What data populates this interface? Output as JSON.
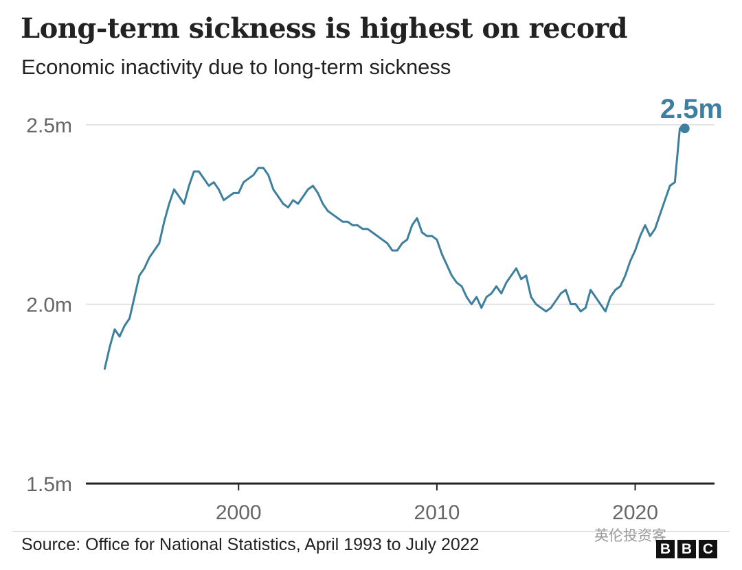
{
  "title": "Long-term sickness is highest on record",
  "subtitle": "Economic inactivity due to long-term sickness",
  "source": "Source: Office for National Statistics, April 1993 to July 2022",
  "watermark": "英伦投资客",
  "logo": {
    "letters": [
      "B",
      "B",
      "C"
    ]
  },
  "colors": {
    "line": "#3d7f9e",
    "grid": "#d9d9d9",
    "axis": "#222222",
    "tick_text": "#666666"
  },
  "chart_data": {
    "type": "line",
    "title": "Long-term sickness is highest on record",
    "subtitle": "Economic inactivity due to long-term sickness",
    "xlabel": "",
    "ylabel": "",
    "xlim": [
      1992.3,
      2024.0
    ],
    "ylim": [
      1.5,
      2.5
    ],
    "y_ticks": [
      {
        "value": 2.5,
        "label": "2.5m"
      },
      {
        "value": 2.0,
        "label": "2.0m"
      },
      {
        "value": 1.5,
        "label": "1.5m"
      }
    ],
    "x_ticks": [
      {
        "value": 2000,
        "label": "2000"
      },
      {
        "value": 2010,
        "label": "2010"
      },
      {
        "value": 2020,
        "label": "2020"
      }
    ],
    "grid": true,
    "unit": "millions",
    "annotation": {
      "text": "2.5m",
      "x": 2022.5,
      "y": 2.49
    },
    "series": [
      {
        "x": [
          1993.25,
          1993.5,
          1993.75,
          1994.0,
          1994.25,
          1994.5,
          1994.75,
          1995.0,
          1995.25,
          1995.5,
          1995.75,
          1996.0,
          1996.25,
          1996.5,
          1996.75,
          1997.0,
          1997.25,
          1997.5,
          1997.75,
          1998.0,
          1998.25,
          1998.5,
          1998.75,
          1999.0,
          1999.25,
          1999.5,
          1999.75,
          2000.0,
          2000.25,
          2000.5,
          2000.75,
          2001.0,
          2001.25,
          2001.5,
          2001.75,
          2002.0,
          2002.25,
          2002.5,
          2002.75,
          2003.0,
          2003.25,
          2003.5,
          2003.75,
          2004.0,
          2004.25,
          2004.5,
          2004.75,
          2005.0,
          2005.25,
          2005.5,
          2005.75,
          2006.0,
          2006.25,
          2006.5,
          2006.75,
          2007.0,
          2007.25,
          2007.5,
          2007.75,
          2008.0,
          2008.25,
          2008.5,
          2008.75,
          2009.0,
          2009.25,
          2009.5,
          2009.75,
          2010.0,
          2010.25,
          2010.5,
          2010.75,
          2011.0,
          2011.25,
          2011.5,
          2011.75,
          2012.0,
          2012.25,
          2012.5,
          2012.75,
          2013.0,
          2013.25,
          2013.5,
          2013.75,
          2014.0,
          2014.25,
          2014.5,
          2014.75,
          2015.0,
          2015.25,
          2015.5,
          2015.75,
          2016.0,
          2016.25,
          2016.5,
          2016.75,
          2017.0,
          2017.25,
          2017.5,
          2017.75,
          2018.0,
          2018.25,
          2018.5,
          2018.75,
          2019.0,
          2019.25,
          2019.5,
          2019.75,
          2020.0,
          2020.25,
          2020.5,
          2020.75,
          2021.0,
          2021.25,
          2021.5,
          2021.75,
          2022.0,
          2022.25,
          2022.5
        ],
        "values": [
          1.82,
          1.88,
          1.93,
          1.91,
          1.94,
          1.96,
          2.02,
          2.08,
          2.1,
          2.13,
          2.15,
          2.17,
          2.23,
          2.28,
          2.32,
          2.3,
          2.28,
          2.33,
          2.37,
          2.37,
          2.35,
          2.33,
          2.34,
          2.32,
          2.29,
          2.3,
          2.31,
          2.31,
          2.34,
          2.35,
          2.36,
          2.38,
          2.38,
          2.36,
          2.32,
          2.3,
          2.28,
          2.27,
          2.29,
          2.28,
          2.3,
          2.32,
          2.33,
          2.31,
          2.28,
          2.26,
          2.25,
          2.24,
          2.23,
          2.23,
          2.22,
          2.22,
          2.21,
          2.21,
          2.2,
          2.19,
          2.18,
          2.17,
          2.15,
          2.15,
          2.17,
          2.18,
          2.22,
          2.24,
          2.2,
          2.19,
          2.19,
          2.18,
          2.14,
          2.11,
          2.08,
          2.06,
          2.05,
          2.02,
          2.0,
          2.02,
          1.99,
          2.02,
          2.03,
          2.05,
          2.03,
          2.06,
          2.08,
          2.1,
          2.07,
          2.08,
          2.02,
          2.0,
          1.99,
          1.98,
          1.99,
          2.01,
          2.03,
          2.04,
          2.0,
          2.0,
          1.98,
          1.99,
          2.04,
          2.02,
          2.0,
          1.98,
          2.02,
          2.04,
          2.05,
          2.08,
          2.12,
          2.15,
          2.19,
          2.22,
          2.19,
          2.21,
          2.25,
          2.29,
          2.33,
          2.34,
          2.49,
          2.49
        ]
      }
    ]
  }
}
